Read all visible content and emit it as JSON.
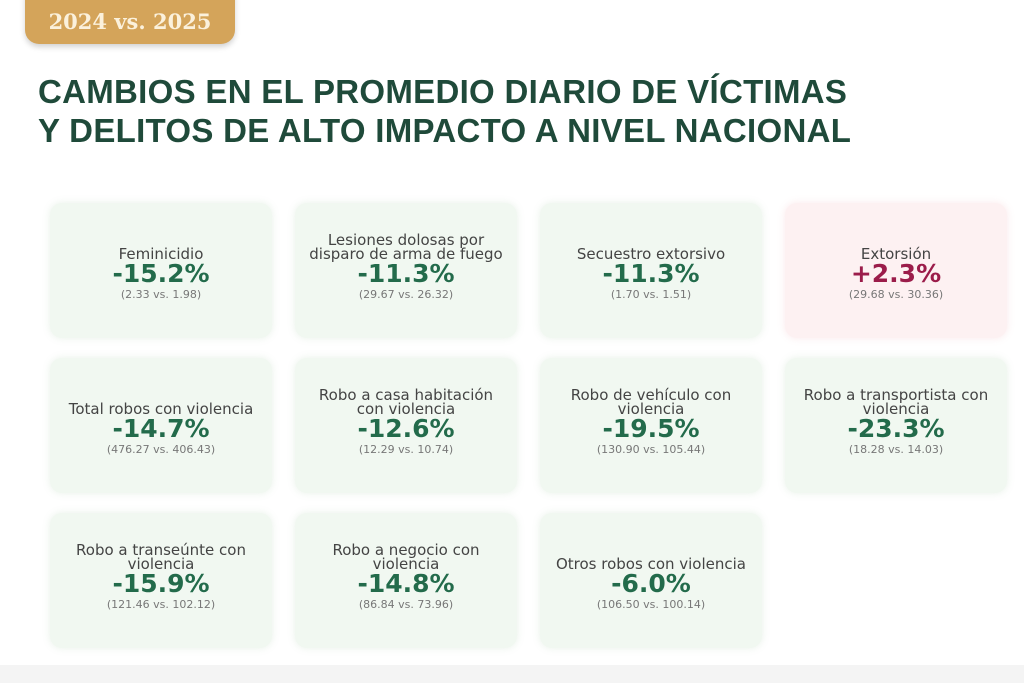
{
  "badge": "2024 vs. 2025",
  "title_line1": "CAMBIOS EN EL PROMEDIO DIARIO DE VÍCTIMAS",
  "title_line2": "Y DELITOS DE ALTO IMPACTO A NIVEL NACIONAL",
  "colors": {
    "decrease": "#236b4b",
    "increase": "#9b1c4a",
    "badge": "#d4a45a",
    "title": "#1f4a3a"
  },
  "cards": [
    {
      "label": "Feminicidio",
      "value": "-15.2%",
      "comparison": "(2.33 vs. 1.98)",
      "trend": "down"
    },
    {
      "label": "Lesiones dolosas por disparo de arma de fuego",
      "value": "-11.3%",
      "comparison": "(29.67 vs. 26.32)",
      "trend": "down"
    },
    {
      "label": "Secuestro extorsivo",
      "value": "-11.3%",
      "comparison": "(1.70 vs. 1.51)",
      "trend": "down"
    },
    {
      "label": "Extorsión",
      "value": "+2.3%",
      "comparison": "(29.68 vs. 30.36)",
      "trend": "up"
    },
    {
      "label": "Total robos con violencia",
      "value": "-14.7%",
      "comparison": "(476.27 vs. 406.43)",
      "trend": "down"
    },
    {
      "label": "Robo a casa habitación con violencia",
      "value": "-12.6%",
      "comparison": "(12.29 vs. 10.74)",
      "trend": "down"
    },
    {
      "label": "Robo de vehículo con violencia",
      "value": "-19.5%",
      "comparison": "(130.90 vs. 105.44)",
      "trend": "down"
    },
    {
      "label": "Robo a transportista con violencia",
      "value": "-23.3%",
      "comparison": "(18.28 vs. 14.03)",
      "trend": "down"
    },
    {
      "label": "Robo a transeúnte con violencia",
      "value": "-15.9%",
      "comparison": "(121.46 vs. 102.12)",
      "trend": "down"
    },
    {
      "label": "Robo a negocio con violencia",
      "value": "-14.8%",
      "comparison": "(86.84 vs. 73.96)",
      "trend": "down"
    },
    {
      "label": "Otros robos con violencia",
      "value": "-6.0%",
      "comparison": "(106.50 vs. 100.14)",
      "trend": "down"
    }
  ]
}
